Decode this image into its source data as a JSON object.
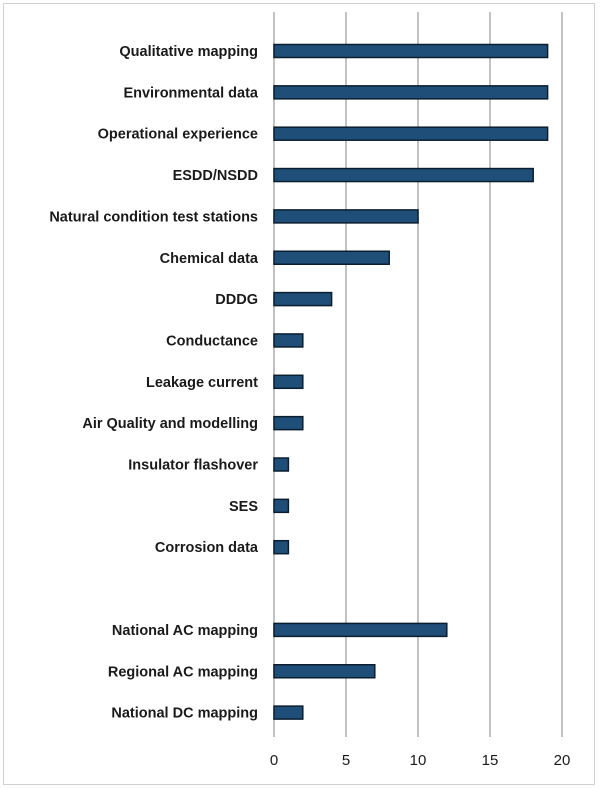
{
  "chart_data": {
    "type": "bar",
    "orientation": "horizontal",
    "title": "",
    "xlabel": "",
    "ylabel": "",
    "xlim": [
      0,
      20
    ],
    "xticks": [
      0,
      5,
      10,
      15,
      20
    ],
    "grid": true,
    "legend": "none",
    "bar_color": "#1f4e79",
    "bar_edge_color": "#0b1e2f",
    "grid_color": "#b3b3b3",
    "categories": [
      "Qualitative mapping",
      "Environmental data",
      "Operational experience",
      "ESDD/NSDD",
      "Natural condition test stations",
      "Chemical data",
      "DDDG",
      "Conductance",
      "Leakage current",
      "Air Quality and modelling",
      "Insulator flashover",
      "SES",
      "Corrosion data",
      "",
      "National AC mapping",
      "Regional AC mapping",
      "National DC mapping"
    ],
    "values": [
      19,
      19,
      19,
      18,
      10,
      8,
      4,
      2,
      2,
      2,
      1,
      1,
      1,
      null,
      12,
      7,
      2
    ]
  }
}
